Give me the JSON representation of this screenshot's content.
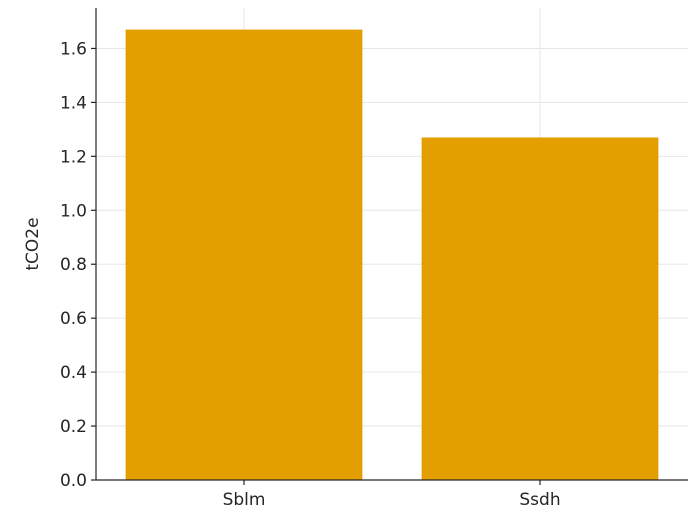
{
  "chart_data": {
    "type": "bar",
    "title": "",
    "xlabel": "",
    "ylabel": "tCO2e",
    "categories": [
      "Sblm",
      "Ssdh"
    ],
    "values": [
      1.67,
      1.27
    ],
    "ylim": [
      0,
      1.75
    ],
    "yticks": [
      0.0,
      0.2,
      0.4,
      0.6,
      0.8,
      1.0,
      1.2,
      1.4,
      1.6
    ],
    "ytick_labels": [
      "0.0",
      "0.2",
      "0.4",
      "0.6",
      "0.8",
      "1.0",
      "1.2",
      "1.4",
      "1.6"
    ],
    "bar_color": "#E39F00",
    "grid": true,
    "legend": "none"
  }
}
